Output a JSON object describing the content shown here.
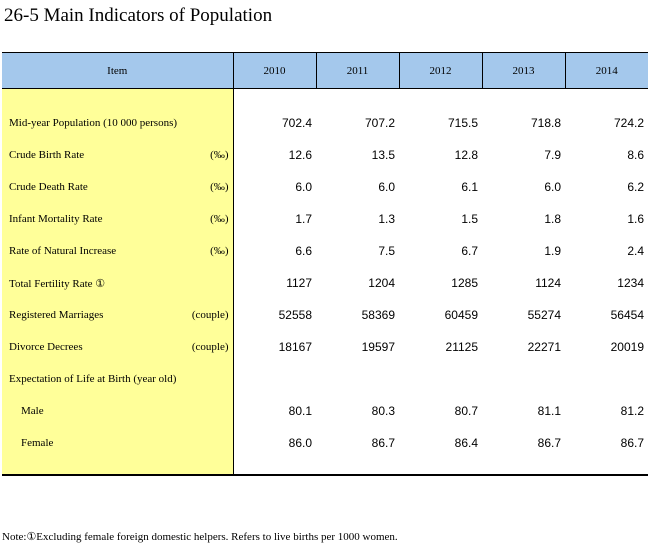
{
  "title": "26-5  Main Indicators of Population",
  "table": {
    "headers": [
      "Item",
      "2010",
      "2011",
      "2012",
      "2013",
      "2014"
    ],
    "rows": [
      {
        "label": "Mid-year Population (10 000 persons)",
        "unit": "",
        "values": [
          "702.4",
          "707.2",
          "715.5",
          "718.8",
          "724.2"
        ]
      },
      {
        "label": "Crude Birth Rate",
        "unit": "(‰)",
        "values": [
          "12.6",
          "13.5",
          "12.8",
          "7.9",
          "8.6"
        ]
      },
      {
        "label": "Crude Death Rate",
        "unit": "(‰)",
        "values": [
          "6.0",
          "6.0",
          "6.1",
          "6.0",
          "6.2"
        ]
      },
      {
        "label": "Infant Mortality Rate",
        "unit": "(‰)",
        "values": [
          "1.7",
          "1.3",
          "1.5",
          "1.8",
          "1.6"
        ]
      },
      {
        "label": "Rate of Natural Increase",
        "unit": "(‰)",
        "values": [
          "6.6",
          "7.5",
          "6.7",
          "1.9",
          "2.4"
        ]
      },
      {
        "label": "Total Fertility Rate ①",
        "unit": "",
        "values": [
          "1127",
          "1204",
          "1285",
          "1124",
          "1234"
        ]
      },
      {
        "label": "Registered Marriages",
        "unit": "(couple)",
        "values": [
          "52558",
          "58369",
          "60459",
          "55274",
          "56454"
        ]
      },
      {
        "label": "Divorce Decrees",
        "unit": "(couple)",
        "values": [
          "18167",
          "19597",
          "21125",
          "22271",
          "20019"
        ]
      },
      {
        "label": "Expectation of Life at Birth (year old)",
        "unit": "",
        "values": [
          "",
          "",
          "",
          "",
          ""
        ]
      },
      {
        "label": "Male",
        "unit": "",
        "values": [
          "80.1",
          "80.3",
          "80.7",
          "81.1",
          "81.2"
        ]
      },
      {
        "label": "Female",
        "unit": "",
        "values": [
          "86.0",
          "86.7",
          "86.4",
          "86.7",
          "86.7"
        ]
      }
    ]
  },
  "note": "Note:①Excluding female foreign domestic helpers. Refers to live births per 1000 women.",
  "colors": {
    "header_bg": "#a4c8ec",
    "item_bg": "#ffff99",
    "border": "#000000"
  }
}
